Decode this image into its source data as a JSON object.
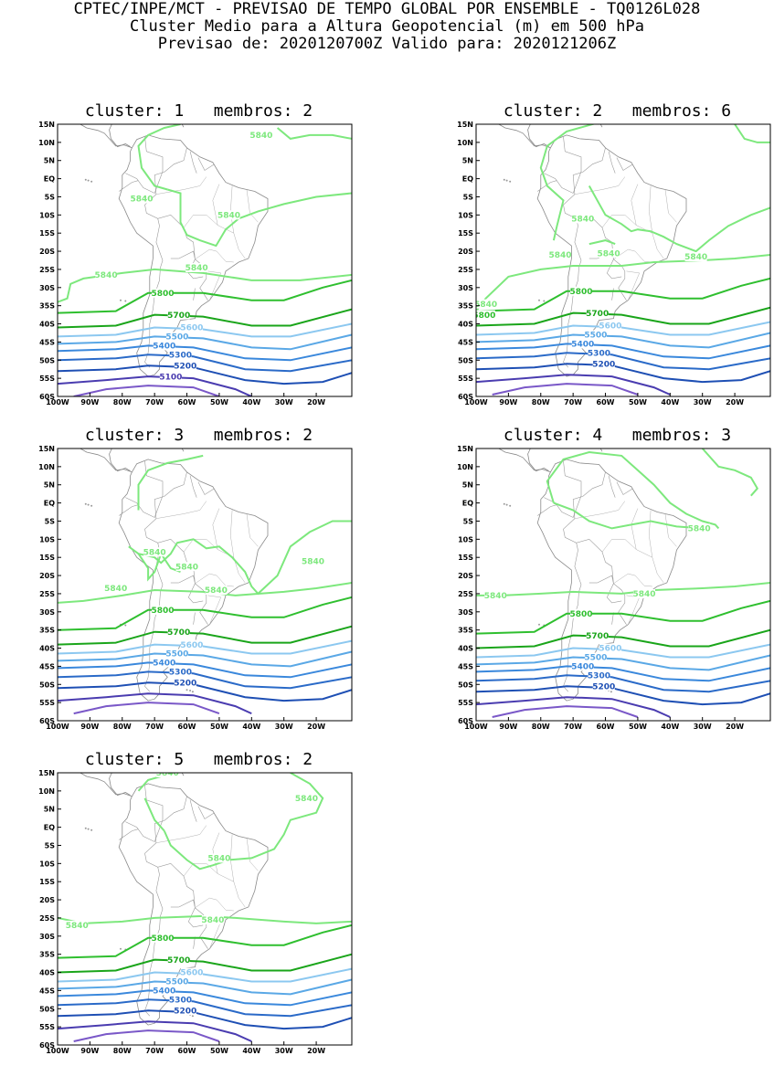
{
  "header": {
    "line1": "CPTEC/INPE/MCT - PREVISAO DE TEMPO GLOBAL POR ENSEMBLE - TQ0126L028",
    "line2": "Cluster Medio para a Altura Geopotencial (m) em 500 hPa",
    "line3": "Previsao de: 2020120700Z    Valido para: 2020121206Z"
  },
  "axes": {
    "lat_ticks": [
      "15N",
      "10N",
      "5N",
      "EQ",
      "5S",
      "10S",
      "15S",
      "20S",
      "25S",
      "30S",
      "35S",
      "40S",
      "45S",
      "50S",
      "55S",
      "60S"
    ],
    "lon_ticks": [
      "100W",
      "90W",
      "80W",
      "70W",
      "60W",
      "50W",
      "40W",
      "30W",
      "20W"
    ]
  },
  "levels": [
    {
      "value": "5840",
      "color": "#7de87d"
    },
    {
      "value": "5800",
      "color": "#2fbf2f"
    },
    {
      "value": "5700",
      "color": "#1aa51a"
    },
    {
      "value": "5600",
      "color": "#8cc8f0"
    },
    {
      "value": "5500",
      "color": "#5aa8e6"
    },
    {
      "value": "5400",
      "color": "#3a88dc"
    },
    {
      "value": "5300",
      "color": "#2a6ac8"
    },
    {
      "value": "5200",
      "color": "#1e4fb4"
    },
    {
      "value": "5100",
      "color": "#4a3cb0"
    },
    {
      "value": "",
      "color": "#7a58c8"
    }
  ],
  "clusters": [
    {
      "title": "cluster: 1   membros: 2"
    },
    {
      "title": "cluster: 2   membros: 6"
    },
    {
      "title": "cluster: 3   membros: 2"
    },
    {
      "title": "cluster: 4   membros: 3"
    },
    {
      "title": "cluster: 5   membros: 2"
    }
  ]
}
